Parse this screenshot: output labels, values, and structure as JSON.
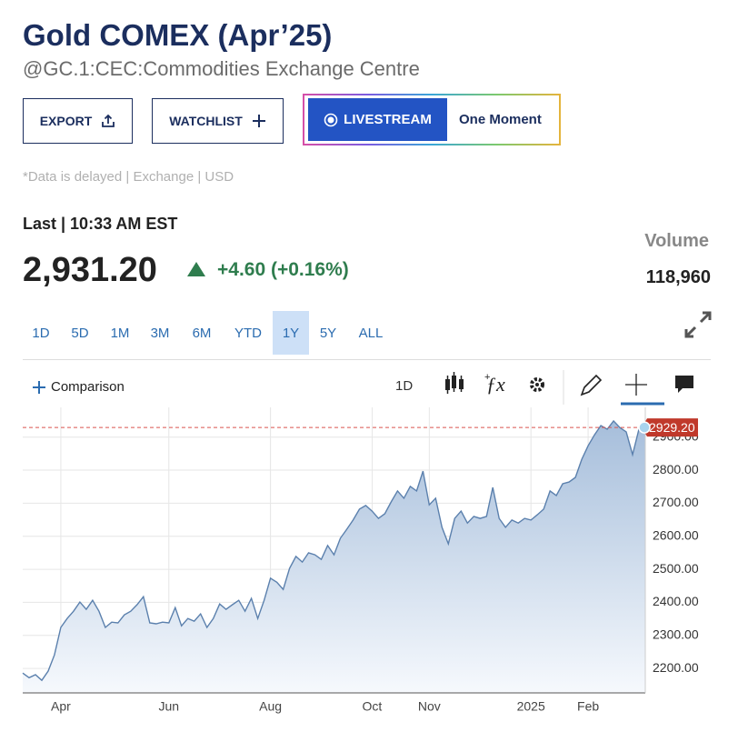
{
  "header": {
    "title": "Gold COMEX (Apr’25)",
    "subtitle": "@GC.1:CEC:Commodities Exchange Centre"
  },
  "buttons": {
    "export": "EXPORT",
    "watchlist": "WATCHLIST",
    "livestream": "LIVESTREAM",
    "livestream_status": "One Moment"
  },
  "note": "*Data is delayed | Exchange | USD",
  "quote": {
    "last_label": "Last | 10:33 AM EST",
    "price": "2,931.20",
    "change": "+4.60 (+0.16%)",
    "volume_label": "Volume",
    "volume": "118,960"
  },
  "ranges": [
    "1D",
    "5D",
    "1M",
    "3M",
    "6M",
    "YTD",
    "1Y",
    "5Y",
    "ALL"
  ],
  "selected_range": "1Y",
  "toolbar": {
    "comparison": "Comparison",
    "interval": "1D"
  },
  "chart_data": {
    "type": "area",
    "categories": [
      null,
      null,
      null,
      null,
      null,
      null,
      "Apr",
      null,
      null,
      null,
      null,
      null,
      null,
      null,
      null,
      null,
      null,
      null,
      null,
      null,
      null,
      null,
      null,
      "Jun",
      null,
      null,
      null,
      null,
      null,
      null,
      null,
      null,
      null,
      null,
      null,
      null,
      null,
      null,
      null,
      "Aug",
      null,
      null,
      null,
      null,
      null,
      null,
      null,
      null,
      null,
      null,
      null,
      null,
      null,
      null,
      null,
      "Oct",
      null,
      null,
      null,
      null,
      null,
      null,
      null,
      null,
      "Nov",
      null,
      null,
      null,
      null,
      null,
      null,
      null,
      null,
      null,
      null,
      null,
      null,
      null,
      null,
      null,
      "2025",
      null,
      null,
      null,
      null,
      null,
      null,
      null,
      null,
      "Feb",
      null,
      null,
      null,
      null,
      null,
      null,
      null,
      null,
      null
    ],
    "values": [
      2186,
      2172,
      2181,
      2164,
      2192,
      2241,
      2324,
      2351,
      2373,
      2401,
      2379,
      2406,
      2373,
      2324,
      2340,
      2338,
      2362,
      2373,
      2393,
      2417,
      2338,
      2335,
      2340,
      2338,
      2384,
      2329,
      2351,
      2343,
      2365,
      2324,
      2351,
      2395,
      2379,
      2393,
      2406,
      2373,
      2412,
      2351,
      2406,
      2473,
      2461,
      2439,
      2503,
      2539,
      2522,
      2550,
      2544,
      2530,
      2572,
      2544,
      2594,
      2621,
      2649,
      2682,
      2693,
      2676,
      2654,
      2668,
      2704,
      2737,
      2715,
      2751,
      2737,
      2797,
      2695,
      2715,
      2627,
      2577,
      2654,
      2676,
      2640,
      2660,
      2654,
      2660,
      2748,
      2654,
      2627,
      2649,
      2640,
      2654,
      2649,
      2665,
      2682,
      2737,
      2723,
      2759,
      2764,
      2778,
      2833,
      2874,
      2907,
      2935,
      2924,
      2949,
      2929,
      2916,
      2847,
      2924,
      2929
    ],
    "color": "#5b80ad",
    "ylim": [
      2126,
      2979
    ],
    "yticks": [
      {
        "value": 2200,
        "label": "2200.00"
      },
      {
        "value": 2300,
        "label": "2300.00"
      },
      {
        "value": 2400,
        "label": "2400.00"
      },
      {
        "value": 2500,
        "label": "2500.00"
      },
      {
        "value": 2600,
        "label": "2600.00"
      },
      {
        "value": 2700,
        "label": "2700.00"
      },
      {
        "value": 2800,
        "label": "2800.00"
      },
      {
        "value": 2900,
        "label": "2900.00"
      }
    ],
    "last_price": {
      "value": 2929.2,
      "label": "2929.20"
    },
    "grid": true
  }
}
